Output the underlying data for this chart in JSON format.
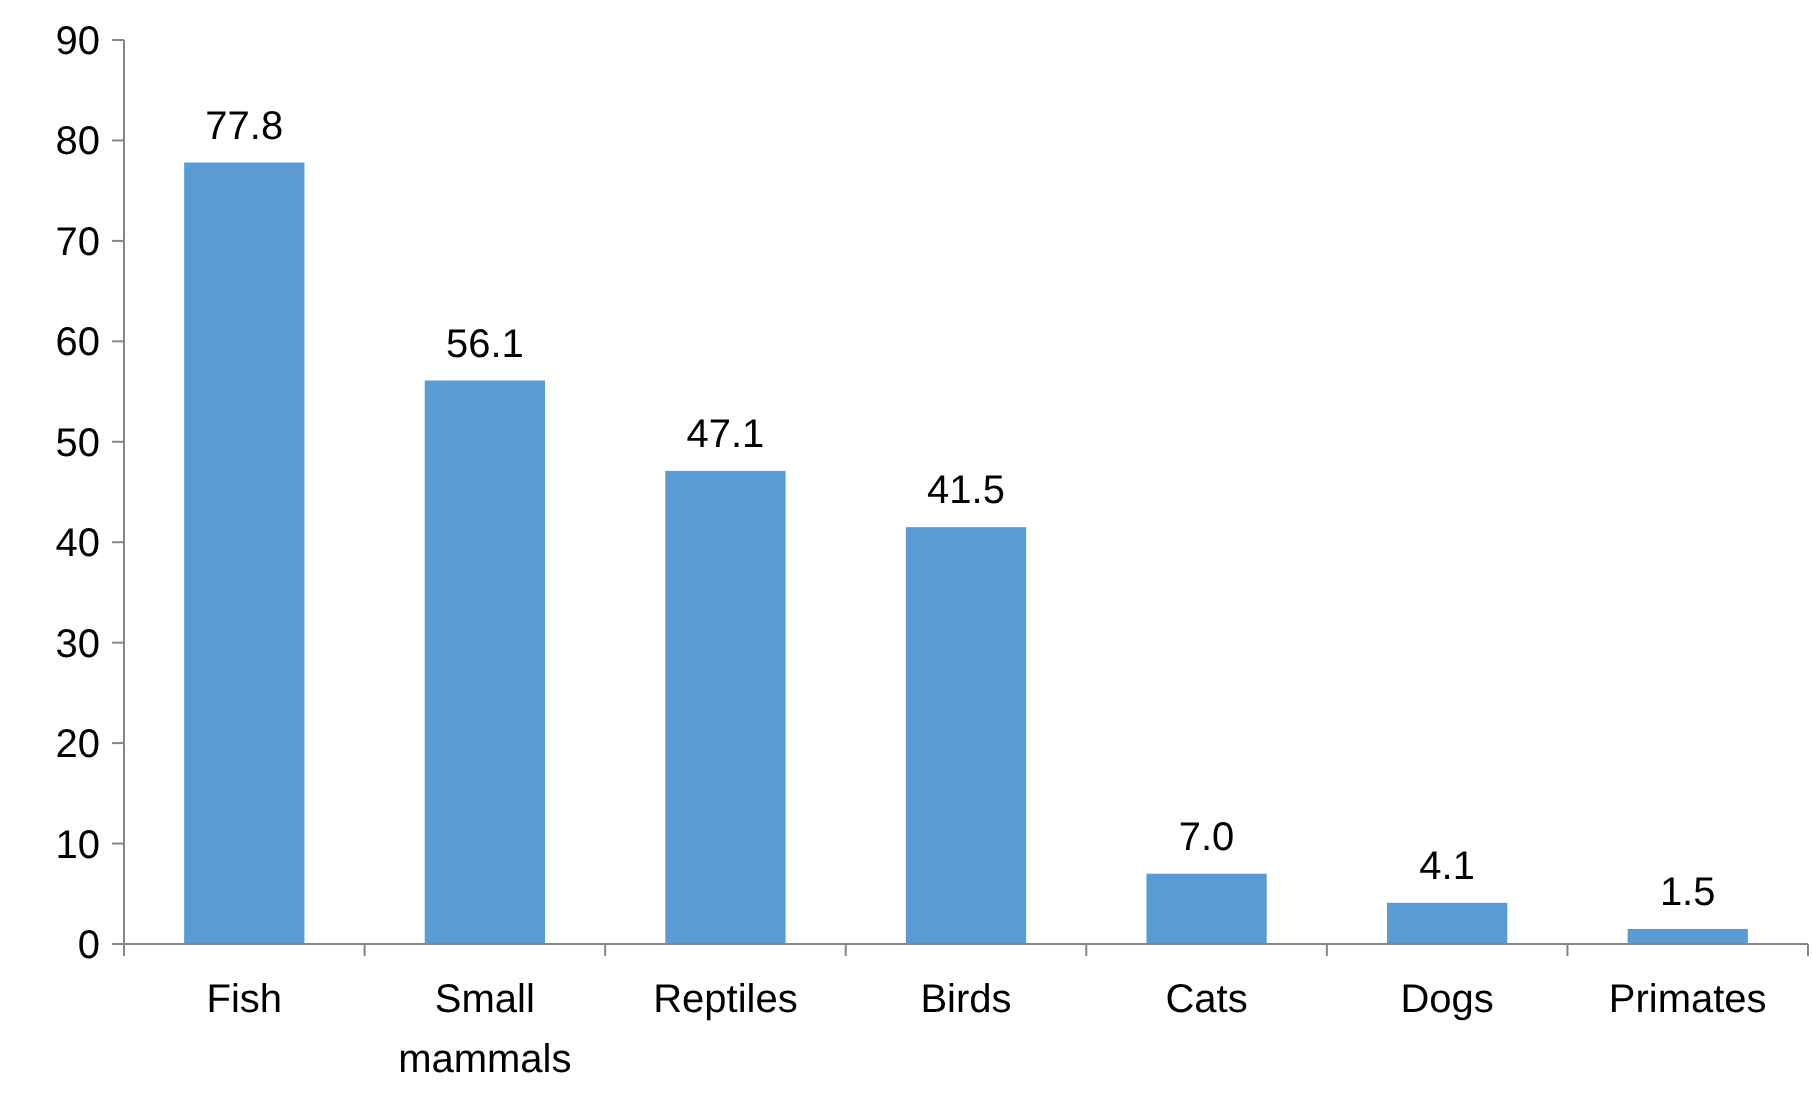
{
  "chart_data": {
    "type": "bar",
    "categories": [
      "Fish",
      "Small mammals",
      "Reptiles",
      "Birds",
      "Cats",
      "Dogs",
      "Primates"
    ],
    "values": [
      77.8,
      56.1,
      47.1,
      41.5,
      7.0,
      4.1,
      1.5
    ],
    "value_labels": [
      "77.8",
      "56.1",
      "47.1",
      "41.5",
      "7.0",
      "4.1",
      "1.5"
    ],
    "color": "#5b9bd5",
    "ylim": [
      0,
      90
    ],
    "yticks": [
      0,
      10,
      20,
      30,
      40,
      50,
      60,
      70,
      80,
      90
    ]
  }
}
